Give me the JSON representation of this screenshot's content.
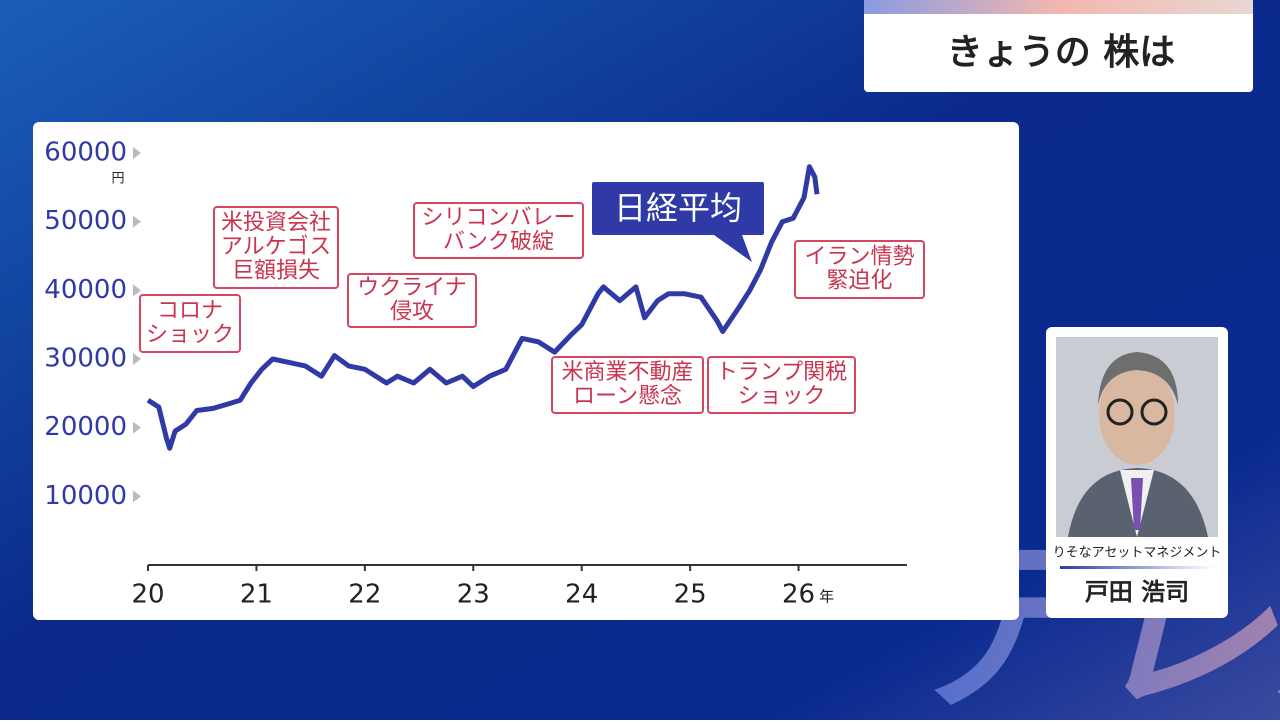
{
  "header": {
    "title": "きょうの 株は"
  },
  "chart_data": {
    "type": "line",
    "x": [
      2020.0,
      2020.05,
      2020.1,
      2020.17,
      2020.2,
      2020.25,
      2020.35,
      2020.45,
      2020.6,
      2020.75,
      2020.85,
      2020.95,
      2021.05,
      2021.15,
      2021.3,
      2021.45,
      2021.6,
      2021.72,
      2021.85,
      2022.0,
      2022.2,
      2022.3,
      2022.45,
      2022.6,
      2022.75,
      2022.9,
      2023.0,
      2023.15,
      2023.3,
      2023.45,
      2023.6,
      2023.75,
      2023.9,
      2024.0,
      2024.15,
      2024.2,
      2024.35,
      2024.5,
      2024.58,
      2024.7,
      2024.8,
      2024.95,
      2025.1,
      2025.25,
      2025.3,
      2025.45,
      2025.55,
      2025.65,
      2025.75,
      2025.85,
      2025.95,
      2026.05,
      2026.1,
      2026.15,
      2026.17
    ],
    "series": [
      {
        "name": "日経平均",
        "color": "#2f3aa6",
        "values": [
          24000,
          23500,
          23000,
          18500,
          17000,
          19500,
          20500,
          22500,
          22800,
          23500,
          24000,
          26500,
          28500,
          30000,
          29500,
          29000,
          27500,
          30500,
          29000,
          28500,
          26500,
          27500,
          26500,
          28500,
          26500,
          27500,
          26000,
          27500,
          28500,
          33000,
          32500,
          31000,
          33500,
          35000,
          39500,
          40500,
          38500,
          40500,
          36000,
          38500,
          39500,
          39500,
          39000,
          35500,
          34000,
          37500,
          40000,
          43000,
          47000,
          50000,
          50500,
          53500,
          58000,
          56500,
          54000
        ]
      }
    ],
    "xlim": [
      2020,
      2027
    ],
    "xticks": [
      {
        "value": 2020,
        "label": "20"
      },
      {
        "value": 2021,
        "label": "21"
      },
      {
        "value": 2022,
        "label": "22"
      },
      {
        "value": 2023,
        "label": "23"
      },
      {
        "value": 2024,
        "label": "24"
      },
      {
        "value": 2025,
        "label": "25"
      },
      {
        "value": 2026,
        "label": "26"
      }
    ],
    "x_unit": "年",
    "ylim": [
      0,
      60000
    ],
    "yticks": [
      10000,
      20000,
      30000,
      40000,
      50000,
      60000
    ],
    "y_unit": "円",
    "annotations": [
      {
        "lines": [
          "コロナ",
          "ショック"
        ]
      },
      {
        "lines": [
          "米投資会社",
          "アルケゴス",
          "巨額損失"
        ]
      },
      {
        "lines": [
          "ウクライナ",
          "侵攻"
        ]
      },
      {
        "lines": [
          "シリコンバレー",
          "バンク破綻"
        ]
      },
      {
        "lines": [
          "米商業不動産",
          "ローン懸念"
        ]
      },
      {
        "lines": [
          "トランプ関税",
          "ショック"
        ]
      },
      {
        "lines": [
          "イラン情勢",
          "緊迫化"
        ]
      }
    ]
  },
  "guest": {
    "company": "りそなアセットマネジメント",
    "name": "戸田 浩司"
  },
  "watermark": "テレ東"
}
